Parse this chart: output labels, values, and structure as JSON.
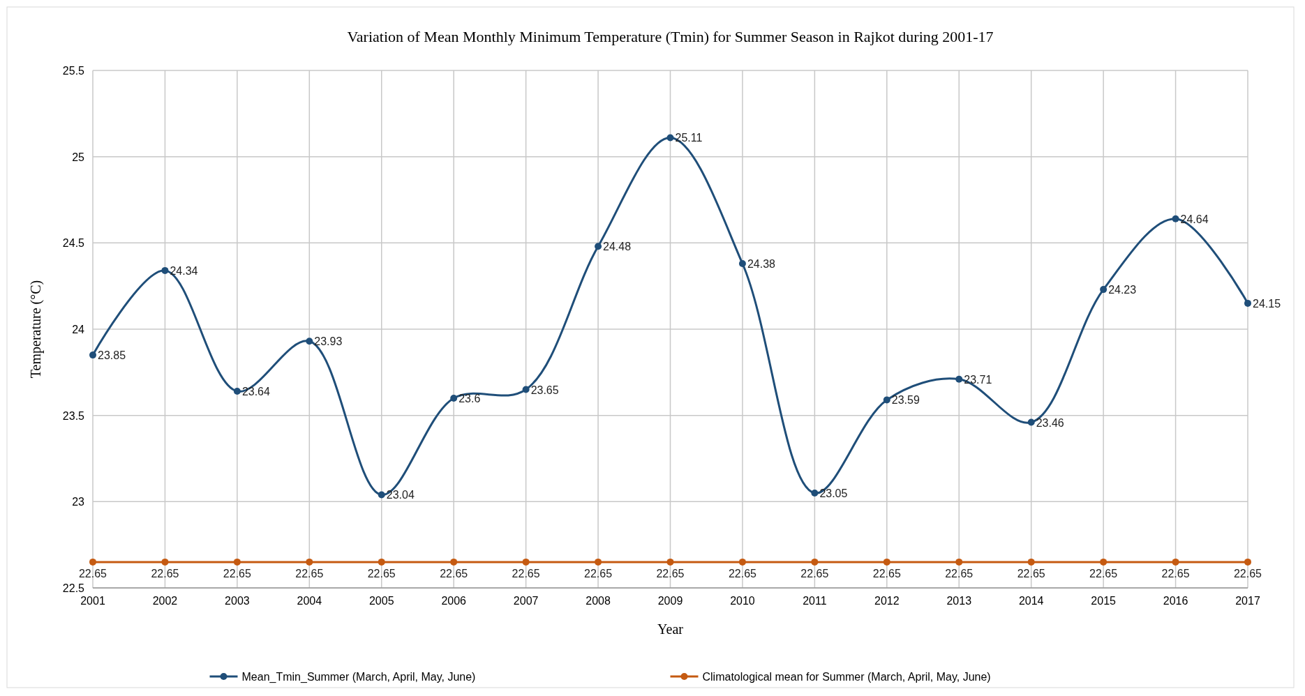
{
  "chart_data": {
    "type": "line",
    "title": "Variation of Mean Monthly Minimum Temperature (Tmin) for Summer Season in Rajkot during 2001-17",
    "xlabel": "Year",
    "ylabel": "Temperature (°C)",
    "categories": [
      "2001",
      "2002",
      "2003",
      "2004",
      "2005",
      "2006",
      "2007",
      "2008",
      "2009",
      "2010",
      "2011",
      "2012",
      "2013",
      "2014",
      "2015",
      "2016",
      "2017"
    ],
    "series": [
      {
        "name": "Mean_Tmin_Summer (March, April, May, June)",
        "color": "#1f4e79",
        "values": [
          23.85,
          24.34,
          23.64,
          23.93,
          23.04,
          23.6,
          23.65,
          24.48,
          25.11,
          24.38,
          23.05,
          23.59,
          23.71,
          23.46,
          24.23,
          24.64,
          24.15
        ]
      },
      {
        "name": "Climatological mean for Summer (March, April, May, June)",
        "color": "#c55a11",
        "values": [
          22.65,
          22.65,
          22.65,
          22.65,
          22.65,
          22.65,
          22.65,
          22.65,
          22.65,
          22.65,
          22.65,
          22.65,
          22.65,
          22.65,
          22.65,
          22.65,
          22.65
        ]
      }
    ],
    "ylim": [
      22.5,
      25.5
    ],
    "yticks": [
      22.5,
      23,
      23.5,
      24,
      24.5,
      25,
      25.5
    ],
    "grid": true,
    "legend": "bottom",
    "marker": "circle",
    "line_style": "solid",
    "data_labels": true
  }
}
